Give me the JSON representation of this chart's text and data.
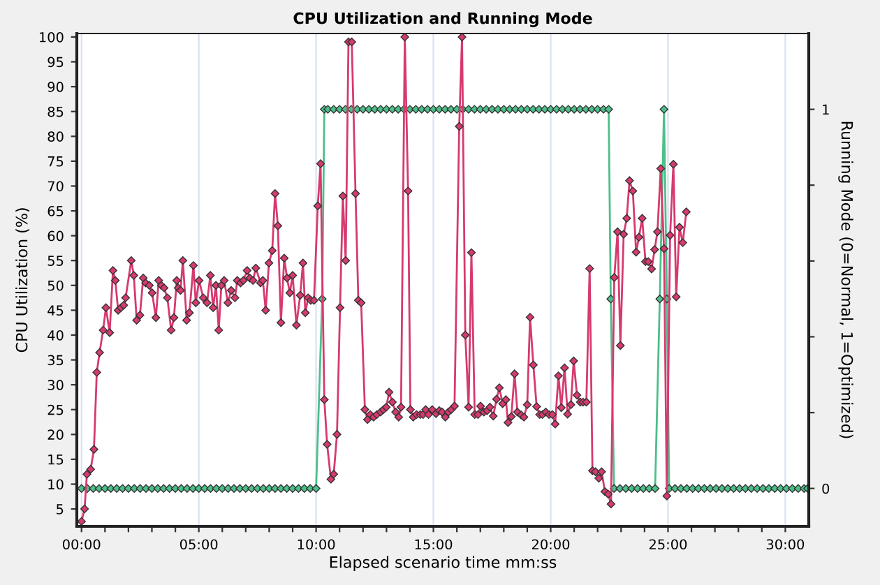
{
  "chart_data": {
    "type": "line",
    "title": "CPU Utilization and Running Mode",
    "xlabel": "Elapsed scenario time mm:ss",
    "ylabel": "CPU Utilization (%)",
    "y2label": "Running Mode (0=Normal, 1=Optimized)",
    "xlim": [
      -0.2,
      31
    ],
    "ylim": [
      1.5,
      100.7
    ],
    "y2lim": [
      -0.1,
      1.2
    ],
    "xticks": [
      {
        "value": 0,
        "label": "00:00"
      },
      {
        "value": 1,
        "label": null
      },
      {
        "value": 2,
        "label": null
      },
      {
        "value": 3,
        "label": null
      },
      {
        "value": 4,
        "label": null
      },
      {
        "value": 5,
        "label": "05:00"
      },
      {
        "value": 6,
        "label": null
      },
      {
        "value": 7,
        "label": null
      },
      {
        "value": 8,
        "label": null
      },
      {
        "value": 9,
        "label": null
      },
      {
        "value": 10,
        "label": "10:00"
      },
      {
        "value": 11,
        "label": null
      },
      {
        "value": 12,
        "label": null
      },
      {
        "value": 13,
        "label": null
      },
      {
        "value": 14,
        "label": null
      },
      {
        "value": 15,
        "label": "15:00"
      },
      {
        "value": 16,
        "label": null
      },
      {
        "value": 17,
        "label": null
      },
      {
        "value": 18,
        "label": null
      },
      {
        "value": 19,
        "label": null
      },
      {
        "value": 20,
        "label": "20:00"
      },
      {
        "value": 21,
        "label": null
      },
      {
        "value": 22,
        "label": null
      },
      {
        "value": 23,
        "label": null
      },
      {
        "value": 24,
        "label": null
      },
      {
        "value": 25,
        "label": "25:00"
      },
      {
        "value": 26,
        "label": null
      },
      {
        "value": 27,
        "label": null
      },
      {
        "value": 28,
        "label": null
      },
      {
        "value": 29,
        "label": null
      },
      {
        "value": 30,
        "label": "30:00"
      }
    ],
    "yticks": [
      5,
      10,
      15,
      20,
      25,
      30,
      35,
      40,
      45,
      50,
      55,
      60,
      65,
      70,
      75,
      80,
      85,
      90,
      95,
      100
    ],
    "y2ticks": [
      0,
      {
        "value": 0.2,
        "label": null
      },
      {
        "value": 0.4,
        "label": null
      },
      {
        "value": 0.6,
        "label": null
      },
      {
        "value": 0.8,
        "label": null
      },
      1
    ],
    "grid": "x",
    "marker": "diamond",
    "line_style": "solid",
    "series": [
      {
        "color": "#d63a6e",
        "x": [
          0,
          0.13,
          0.23,
          0.39,
          0.53,
          0.65,
          0.77,
          0.92,
          1.04,
          1.2,
          1.34,
          1.44,
          1.56,
          1.68,
          1.8,
          1.88,
          2.12,
          2.23,
          2.35,
          2.49,
          2.63,
          2.73,
          2.89,
          3.01,
          3.17,
          3.29,
          3.4,
          3.52,
          3.66,
          3.82,
          3.94,
          4.06,
          4.12,
          4.22,
          4.32,
          4.48,
          4.6,
          4.77,
          4.87,
          5.01,
          5.19,
          5.35,
          5.49,
          5.61,
          5.73,
          5.85,
          5.96,
          6.08,
          6.24,
          6.38,
          6.54,
          6.64,
          6.78,
          6.9,
          7.06,
          7.17,
          7.31,
          7.43,
          7.63,
          7.73,
          7.85,
          7.99,
          8.13,
          8.25,
          8.37,
          8.5,
          8.64,
          8.76,
          8.88,
          9.0,
          9.16,
          9.32,
          9.44,
          9.54,
          9.66,
          9.77,
          9.91,
          10.07,
          10.19,
          10.35,
          10.47,
          10.63,
          10.75,
          10.89,
          11.02,
          11.14,
          11.26,
          11.38,
          11.52,
          11.68,
          11.8,
          11.92,
          12.08,
          12.19,
          12.31,
          12.45,
          12.59,
          12.75,
          12.87,
          12.99,
          13.11,
          13.25,
          13.39,
          13.52,
          13.62,
          13.78,
          13.92,
          14.02,
          14.14,
          14.28,
          14.44,
          14.56,
          14.67,
          14.79,
          14.95,
          15.11,
          15.25,
          15.37,
          15.51,
          15.64,
          15.76,
          15.9,
          16.1,
          16.22,
          16.36,
          16.5,
          16.62,
          16.76,
          16.9,
          17.01,
          17.15,
          17.29,
          17.41,
          17.55,
          17.69,
          17.81,
          17.95,
          18.09,
          18.18,
          18.32,
          18.46,
          18.58,
          18.74,
          18.86,
          19.0,
          19.12,
          19.26,
          19.4,
          19.53,
          19.65,
          19.79,
          19.93,
          20.07,
          20.19,
          20.33,
          20.45,
          20.59,
          20.72,
          20.86,
          20.98,
          21.12,
          21.26,
          21.38,
          21.52,
          21.66,
          21.78,
          21.91,
          22.05,
          22.17,
          22.31,
          22.45,
          22.57,
          22.71,
          22.85,
          22.97,
          23.11,
          23.24,
          23.36,
          23.5,
          23.64,
          23.76,
          23.9,
          24.04,
          24.16,
          24.3,
          24.43,
          24.55,
          24.69,
          24.83,
          24.95,
          25.09,
          25.23,
          25.35,
          25.49,
          25.63,
          25.78
        ],
        "values": [
          2.5,
          5,
          12,
          13,
          17,
          32.5,
          36.5,
          41,
          45.5,
          40.5,
          53,
          51,
          45,
          45.5,
          46,
          47.5,
          55,
          52,
          43,
          44,
          51.5,
          50.5,
          50,
          48.5,
          43.5,
          51,
          50,
          49.5,
          47.5,
          41,
          43.5,
          51,
          49.5,
          49,
          55,
          43,
          44.5,
          54,
          46.5,
          51,
          47.5,
          46.5,
          52,
          45.5,
          50,
          41,
          50,
          51,
          46.5,
          49,
          47.5,
          51,
          50.5,
          51,
          53,
          51.5,
          51,
          53.5,
          50.5,
          51,
          45,
          54.5,
          57,
          68.5,
          62,
          42.5,
          55.5,
          51.5,
          48.5,
          52,
          42,
          48,
          54.5,
          44.5,
          47.5,
          47,
          47,
          66,
          74.5,
          27,
          18,
          11,
          12,
          20,
          45.5,
          68,
          55,
          99,
          99,
          68.5,
          47,
          46.5,
          25,
          23,
          24,
          23.5,
          24,
          24.5,
          25,
          25.5,
          28.5,
          26.5,
          24.5,
          23.5,
          25.5,
          100,
          69,
          25,
          23.5,
          24,
          24,
          24,
          25,
          24,
          25,
          24.2,
          24.8,
          24.5,
          23.5,
          24.5,
          25,
          25.7,
          82,
          100,
          40,
          25.5,
          56.6,
          24,
          24,
          25.7,
          24.5,
          24.8,
          25.5,
          23.7,
          27.1,
          29.4,
          26.2,
          27,
          22.4,
          23.6,
          32.2,
          24.5,
          23.9,
          23.5,
          26,
          43.6,
          34,
          25.6,
          24,
          24,
          24.5,
          24,
          24,
          22.1,
          31.8,
          25.4,
          33.4,
          24.1,
          26,
          34.8,
          27.9,
          26.5,
          26.5,
          26.5,
          53.4,
          12.7,
          12.5,
          11.2,
          12.5,
          8.5,
          8,
          6,
          51.6,
          60.8,
          37.9,
          60.3,
          63.5,
          71.1,
          69,
          56.7,
          59.7,
          63.5,
          54.8,
          54.8,
          53.3,
          57.2,
          60.8,
          73.5,
          57.4,
          7.6,
          60.1,
          74.4,
          47.7,
          61.7,
          58.6,
          64.8
        ]
      },
      {
        "color": "#4cbf8a",
        "axis": "y2",
        "x": [
          0,
          0.25,
          0.5,
          0.75,
          1,
          1.25,
          1.5,
          1.75,
          2,
          2.25,
          2.5,
          2.75,
          3,
          3.25,
          3.5,
          3.75,
          4,
          4.25,
          4.5,
          4.75,
          5,
          5.25,
          5.5,
          5.75,
          6,
          6.25,
          6.5,
          6.75,
          7,
          7.25,
          7.5,
          7.75,
          8,
          8.25,
          8.5,
          8.75,
          9,
          9.25,
          9.5,
          9.75,
          10,
          10.26,
          10.35,
          10.5,
          10.75,
          11,
          11.25,
          11.5,
          11.75,
          12,
          12.25,
          12.5,
          12.75,
          13,
          13.25,
          13.5,
          13.75,
          14,
          14.25,
          14.5,
          14.75,
          15,
          15.25,
          15.5,
          15.75,
          16,
          16.25,
          16.5,
          16.75,
          17,
          17.25,
          17.5,
          17.75,
          18,
          18.25,
          18.5,
          18.75,
          19,
          19.25,
          19.5,
          19.75,
          20,
          20.25,
          20.5,
          20.75,
          21,
          21.25,
          21.5,
          21.75,
          22,
          22.25,
          22.47,
          22.56,
          22.7,
          22.95,
          23.2,
          23.45,
          23.7,
          23.95,
          24.2,
          24.45,
          24.65,
          24.83,
          24.95,
          25.05,
          25.3,
          25.55,
          25.8,
          26.05,
          26.3,
          26.55,
          26.8,
          27.05,
          27.3,
          27.55,
          27.8,
          28.05,
          28.3,
          28.55,
          28.8,
          29.05,
          29.3,
          29.55,
          29.8,
          30.05,
          30.3,
          30.55,
          30.8,
          30.95
        ],
        "values": [
          0,
          0,
          0,
          0,
          0,
          0,
          0,
          0,
          0,
          0,
          0,
          0,
          0,
          0,
          0,
          0,
          0,
          0,
          0,
          0,
          0,
          0,
          0,
          0,
          0,
          0,
          0,
          0,
          0,
          0,
          0,
          0,
          0,
          0,
          0,
          0,
          0,
          0,
          0,
          0,
          0,
          0.5,
          1,
          1,
          1,
          1,
          1,
          1,
          1,
          1,
          1,
          1,
          1,
          1,
          1,
          1,
          1,
          1,
          1,
          1,
          1,
          1,
          1,
          1,
          1,
          1,
          1,
          1,
          1,
          1,
          1,
          1,
          1,
          1,
          1,
          1,
          1,
          1,
          1,
          1,
          1,
          1,
          1,
          1,
          1,
          1,
          1,
          1,
          1,
          1,
          1,
          1,
          0.5,
          0,
          0,
          0,
          0,
          0,
          0,
          0,
          0,
          0.5,
          1,
          0.5,
          0,
          0,
          0,
          0,
          0,
          0,
          0,
          0,
          0,
          0,
          0,
          0,
          0,
          0,
          0,
          0,
          0,
          0,
          0,
          0,
          0,
          0,
          0,
          0,
          0
        ]
      }
    ]
  }
}
